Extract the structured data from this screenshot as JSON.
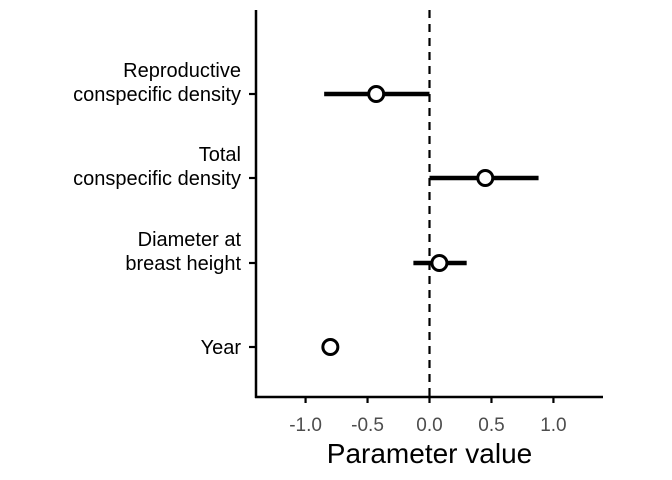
{
  "chart_data": {
    "type": "forest",
    "xlabel": "Parameter value",
    "ylabel": "",
    "xlim": [
      -1.4,
      1.4
    ],
    "x_ticks": [
      "-1.0",
      "-0.5",
      "0.0",
      "0.5",
      "1.0"
    ],
    "x_tick_values": [
      -1.0,
      -0.5,
      0.0,
      0.5,
      1.0
    ],
    "reference_line": {
      "x": 0,
      "style": "dashed"
    },
    "grid": false,
    "colors": {
      "line": "#000000",
      "point_fill": "#ffffff",
      "tick_text": "#4d4d4d"
    },
    "categories": [
      {
        "label": [
          "Reproductive",
          "conspecific density"
        ],
        "estimate": -0.43,
        "lower": -0.85,
        "upper": 0.0
      },
      {
        "label": [
          "Total",
          "conspecific density"
        ],
        "estimate": 0.45,
        "lower": 0.0,
        "upper": 0.88
      },
      {
        "label": [
          "Diameter at",
          "breast height"
        ],
        "estimate": 0.08,
        "lower": -0.13,
        "upper": 0.3
      },
      {
        "label": [
          "Year"
        ],
        "estimate": -0.8,
        "lower": -0.83,
        "upper": -0.76
      }
    ]
  }
}
